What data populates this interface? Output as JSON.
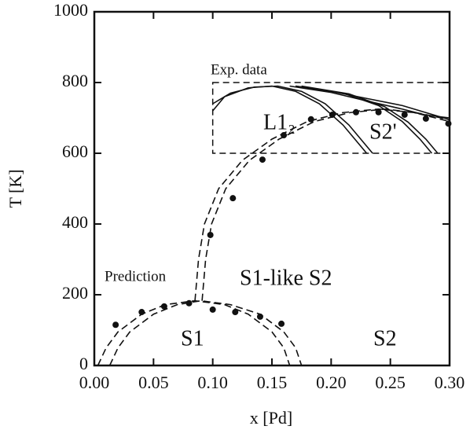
{
  "chart_data": {
    "type": "scatter",
    "x_label": "x [Pd]",
    "y_label": "T [K]",
    "xlim": [
      0,
      0.3
    ],
    "ylim": [
      0,
      1000
    ],
    "xticks": [
      {
        "value": 0,
        "label": "0.00"
      },
      {
        "value": 0.05,
        "label": "0.05"
      },
      {
        "value": 0.1,
        "label": "0.10"
      },
      {
        "value": 0.15,
        "label": "0.15"
      },
      {
        "value": 0.2,
        "label": "0.20"
      },
      {
        "value": 0.25,
        "label": "0.25"
      },
      {
        "value": 0.3,
        "label": "0.30"
      }
    ],
    "yticks": [
      0,
      200,
      400,
      600,
      800,
      1000
    ],
    "color": "#111111",
    "points": {
      "x": [
        0.018,
        0.04,
        0.059,
        0.08,
        0.1,
        0.119,
        0.14,
        0.158,
        0.098,
        0.117,
        0.142,
        0.16,
        0.183,
        0.201,
        0.221,
        0.24,
        0.262,
        0.28,
        0.299
      ],
      "values": [
        115,
        151,
        167,
        176,
        158,
        151,
        138,
        118,
        369,
        473,
        582,
        651,
        696,
        709,
        716,
        716,
        709,
        698,
        684
      ]
    },
    "curves": [
      {
        "dashed": true,
        "x": [
          0.003,
          0.01,
          0.02,
          0.04,
          0.06,
          0.085,
          0.11,
          0.13,
          0.15,
          0.16,
          0.165
        ],
        "values": [
          0,
          50,
          95,
          145,
          172,
          183,
          172,
          145,
          95,
          50,
          0
        ]
      },
      {
        "dashed": true,
        "x": [
          0.013,
          0.02,
          0.03,
          0.05,
          0.07,
          0.09,
          0.115,
          0.14,
          0.16,
          0.17,
          0.175
        ],
        "values": [
          0,
          50,
          95,
          145,
          172,
          183,
          172,
          145,
          95,
          50,
          0
        ]
      },
      {
        "dashed": true,
        "x": [
          0.085,
          0.088,
          0.093,
          0.105,
          0.125,
          0.15,
          0.18,
          0.21,
          0.24,
          0.27,
          0.3
        ],
        "values": [
          183,
          300,
          400,
          500,
          580,
          640,
          690,
          715,
          725,
          715,
          690
        ]
      },
      {
        "dashed": true,
        "x": [
          0.091,
          0.094,
          0.099,
          0.111,
          0.131,
          0.156,
          0.186,
          0.216,
          0.246,
          0.276,
          0.3
        ],
        "values": [
          183,
          300,
          400,
          500,
          580,
          640,
          690,
          715,
          725,
          712,
          695
        ]
      },
      {
        "dashed": false,
        "x": [
          0.1,
          0.11,
          0.13,
          0.15,
          0.17,
          0.19,
          0.21,
          0.225,
          0.23
        ],
        "values": [
          720,
          760,
          785,
          790,
          775,
          740,
          680,
          620,
          600
        ]
      },
      {
        "dashed": false,
        "x": [
          0.1,
          0.115,
          0.135,
          0.155,
          0.175,
          0.195,
          0.215,
          0.23,
          0.235
        ],
        "values": [
          740,
          770,
          787,
          790,
          775,
          740,
          680,
          620,
          600
        ]
      },
      {
        "dashed": false,
        "x": [
          0.17,
          0.2,
          0.23,
          0.26,
          0.28,
          0.3
        ],
        "values": [
          790,
          775,
          755,
          735,
          715,
          695
        ]
      },
      {
        "dashed": false,
        "x": [
          0.165,
          0.2,
          0.23,
          0.26,
          0.28,
          0.3
        ],
        "values": [
          790,
          772,
          748,
          725,
          708,
          700
        ]
      },
      {
        "dashed": false,
        "x": [
          0.17,
          0.21,
          0.24,
          0.26,
          0.275,
          0.285
        ],
        "values": [
          790,
          770,
          735,
          690,
          640,
          600
        ]
      },
      {
        "dashed": false,
        "x": [
          0.175,
          0.215,
          0.245,
          0.265,
          0.28,
          0.29
        ],
        "values": [
          790,
          768,
          732,
          688,
          640,
          600
        ]
      }
    ],
    "exp_region": {
      "x": [
        0.1,
        0.3
      ],
      "y": [
        600,
        800
      ]
    },
    "annotations": [
      "Exp. data",
      "L1₂",
      "S2'",
      "Prediction",
      "S1-like S2",
      "S1",
      "S2"
    ]
  }
}
